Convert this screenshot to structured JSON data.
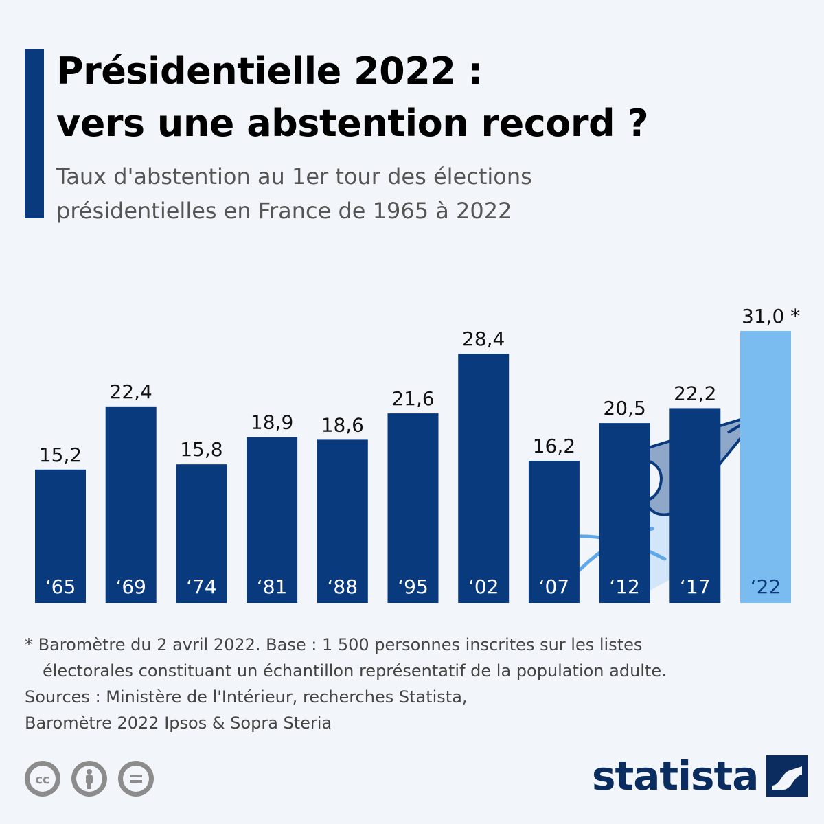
{
  "title": {
    "line1": "Présidentielle 2022 :",
    "line2": "vers une abstention record ?"
  },
  "subtitle": {
    "line1": "Taux d'abstention au 1er tour des élections",
    "line2": "présidentielles en France de 1965 à 2022"
  },
  "colors": {
    "accent": "#0a3a7e",
    "bar": "#0a3a7e",
    "highlight_bar": "#7bbcf0",
    "highlight_label": "#0a3a7e",
    "brand": "#0a2c5e"
  },
  "chart_data": {
    "type": "bar",
    "categories": [
      "‘65",
      "‘69",
      "‘74",
      "‘81",
      "‘88",
      "‘95",
      "‘02",
      "‘07",
      "‘12",
      "‘17",
      "‘22"
    ],
    "values": [
      15.2,
      22.4,
      15.8,
      18.9,
      18.6,
      21.6,
      28.4,
      16.2,
      20.5,
      22.2,
      31.0
    ],
    "value_labels": [
      "15,2",
      "22,4",
      "15,8",
      "18,9",
      "18,6",
      "21,6",
      "28,4",
      "16,2",
      "20,5",
      "22,2",
      "31,0 *"
    ],
    "highlight_index": 10,
    "title": "Taux d'abstention au 1er tour des élections présidentielles en France de 1965 à 2022",
    "xlabel": "",
    "ylabel": "",
    "ylim": [
      0,
      31
    ],
    "grid": false,
    "legend": "none"
  },
  "icons": {
    "illustration": "hand-casting-ballot-icon",
    "license": [
      "creative-commons-icon",
      "attribution-icon",
      "no-derivatives-icon"
    ],
    "brand": "statista-logo-icon"
  },
  "footnote": {
    "line1": "* Baromètre du 2 avril 2022. Base : 1 500 personnes inscrites sur les listes",
    "line2": "électorales constituant un échantillon représentatif de la population adulte."
  },
  "sources": {
    "line1": "Sources : Ministère de l'Intérieur, recherches Statista,",
    "line2": "Baromètre 2022 Ipsos & Sopra Steria"
  },
  "brand": {
    "name": "statista"
  }
}
